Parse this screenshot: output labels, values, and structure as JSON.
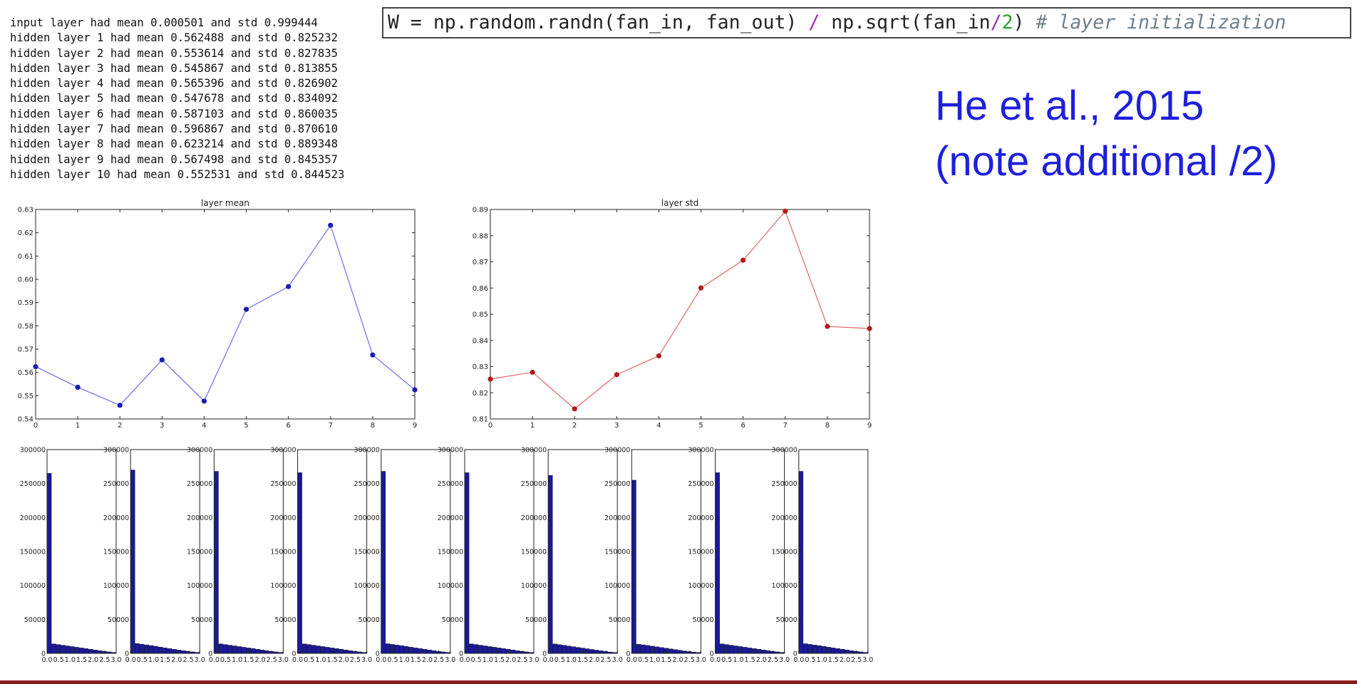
{
  "stats_lines": [
    "input layer had mean 0.000501 and std 0.999444",
    "hidden layer 1 had mean 0.562488 and std 0.825232",
    "hidden layer 2 had mean 0.553614 and std 0.827835",
    "hidden layer 3 had mean 0.545867 and std 0.813855",
    "hidden layer 4 had mean 0.565396 and std 0.826902",
    "hidden layer 5 had mean 0.547678 and std 0.834092",
    "hidden layer 6 had mean 0.587103 and std 0.860035",
    "hidden layer 7 had mean 0.596867 and std 0.870610",
    "hidden layer 8 had mean 0.623214 and std 0.889348",
    "hidden layer 9 had mean 0.567498 and std 0.845357",
    "hidden layer 10 had mean 0.552531 and std 0.844523"
  ],
  "code": {
    "p1": "W = np.random.randn(fan_in, fan_out) ",
    "op1": "/",
    "p2": " np.sqrt(fan_in",
    "op2": "/",
    "num": "2",
    "p3": ") ",
    "comment": "# layer initialization"
  },
  "citation": {
    "line1": "He et al., 2015",
    "line2": "(note additional /2)"
  },
  "colors": {
    "mean_line": "#6b6bf0",
    "mean_point": "#1c1cb4",
    "std_line": "#e06565",
    "std_point": "#b01c1c",
    "hist_fill": "#1a1a9a",
    "citation": "#1f1fdc"
  },
  "chart_data": [
    {
      "type": "line",
      "title": "layer mean",
      "x": [
        0,
        1,
        2,
        3,
        4,
        5,
        6,
        7,
        8,
        9
      ],
      "y": [
        0.562488,
        0.553614,
        0.545867,
        0.565396,
        0.547678,
        0.587103,
        0.596867,
        0.623214,
        0.567498,
        0.552531
      ],
      "xlim": [
        0,
        9
      ],
      "ylim": [
        0.54,
        0.63
      ],
      "yticks": [
        "0.54",
        "0.55",
        "0.56",
        "0.57",
        "0.58",
        "0.59",
        "0.60",
        "0.61",
        "0.62",
        "0.63"
      ],
      "xticks": [
        "0",
        "1",
        "2",
        "3",
        "4",
        "5",
        "6",
        "7",
        "8",
        "9"
      ]
    },
    {
      "type": "line",
      "title": "layer std",
      "x": [
        0,
        1,
        2,
        3,
        4,
        5,
        6,
        7,
        8,
        9
      ],
      "y": [
        0.825232,
        0.827835,
        0.813855,
        0.826902,
        0.834092,
        0.860035,
        0.87061,
        0.889348,
        0.845357,
        0.844523
      ],
      "xlim": [
        0,
        9
      ],
      "ylim": [
        0.81,
        0.89
      ],
      "yticks": [
        "0.81",
        "0.82",
        "0.83",
        "0.84",
        "0.85",
        "0.86",
        "0.87",
        "0.88",
        "0.89"
      ],
      "xticks": [
        "0",
        "1",
        "2",
        "3",
        "4",
        "5",
        "6",
        "7",
        "8",
        "9"
      ]
    },
    {
      "type": "bar",
      "title": "",
      "panels": 10,
      "xlim": [
        0,
        3.0
      ],
      "ylim": [
        0,
        300000
      ],
      "yticks": [
        "0",
        "50000",
        "100000",
        "150000",
        "200000",
        "250000",
        "300000"
      ],
      "xticks": [
        "0.0",
        "0.5",
        "1.0",
        "1.5",
        "2.0",
        "2.5",
        "3.0"
      ],
      "series": [
        {
          "values": [
            265000,
            14000,
            13000,
            12000,
            11000,
            10000,
            9000,
            8000,
            7000,
            6000,
            5000,
            4000,
            3000,
            2200,
            1500
          ]
        },
        {
          "values": [
            270000,
            14500,
            13500,
            12500,
            11500,
            10500,
            9200,
            8000,
            7000,
            6000,
            5000,
            4000,
            3000,
            2200,
            1500
          ]
        },
        {
          "values": [
            268000,
            14000,
            13000,
            12000,
            11000,
            10000,
            9000,
            8000,
            7000,
            6000,
            5000,
            4000,
            3000,
            2200,
            1500
          ]
        },
        {
          "values": [
            266000,
            14000,
            13000,
            12000,
            11000,
            10000,
            9000,
            8000,
            7000,
            6000,
            5000,
            4000,
            3000,
            2200,
            1500
          ]
        },
        {
          "values": [
            268000,
            14200,
            13200,
            12200,
            11200,
            10200,
            9100,
            8000,
            7000,
            6000,
            5000,
            4000,
            3000,
            2200,
            1500
          ]
        },
        {
          "values": [
            266000,
            14000,
            13000,
            12000,
            11000,
            10000,
            9000,
            8000,
            7000,
            6000,
            5000,
            4000,
            3000,
            2200,
            1500
          ]
        },
        {
          "values": [
            262000,
            13800,
            12800,
            11800,
            10800,
            9800,
            8800,
            7800,
            6800,
            5800,
            4800,
            3800,
            2800,
            2000,
            1400
          ]
        },
        {
          "values": [
            255000,
            13500,
            12600,
            11600,
            10600,
            9600,
            8600,
            7600,
            6600,
            5600,
            4600,
            3600,
            2700,
            2000,
            1400
          ]
        },
        {
          "values": [
            266000,
            14000,
            13000,
            12000,
            11000,
            10000,
            9000,
            8000,
            7000,
            6000,
            5000,
            4000,
            3000,
            2200,
            1500
          ]
        },
        {
          "values": [
            268000,
            14200,
            13200,
            12200,
            11200,
            10200,
            9100,
            8000,
            7000,
            6000,
            5000,
            4000,
            3000,
            2200,
            1500
          ]
        }
      ]
    }
  ]
}
